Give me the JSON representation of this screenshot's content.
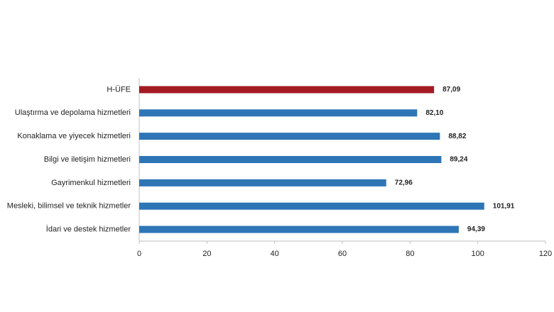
{
  "chart_data": {
    "type": "bar",
    "orientation": "horizontal",
    "categories": [
      "H-ÜFE",
      "Ulaştırma ve depolama hizmetleri",
      "Konaklama ve yiyecek hizmetleri",
      "Bilgi ve iletişim hizmetleri",
      "Gayrimenkul hizmetleri",
      "Mesleki, bilimsel ve teknik hizmetler",
      "İdari ve destek hizmetler"
    ],
    "values": [
      87.09,
      82.1,
      88.82,
      89.24,
      72.96,
      101.91,
      94.39
    ],
    "value_labels": [
      "87,09",
      "82,10",
      "88,82",
      "89,24",
      "72,96",
      "101,91",
      "94,39"
    ],
    "colors": [
      "#a31a22",
      "#2e75b6",
      "#2e75b6",
      "#2e75b6",
      "#2e75b6",
      "#2e75b6",
      "#2e75b6"
    ],
    "xlim": [
      0,
      120
    ],
    "xticks": [
      0,
      20,
      40,
      60,
      80,
      100,
      120
    ],
    "grid": false
  }
}
